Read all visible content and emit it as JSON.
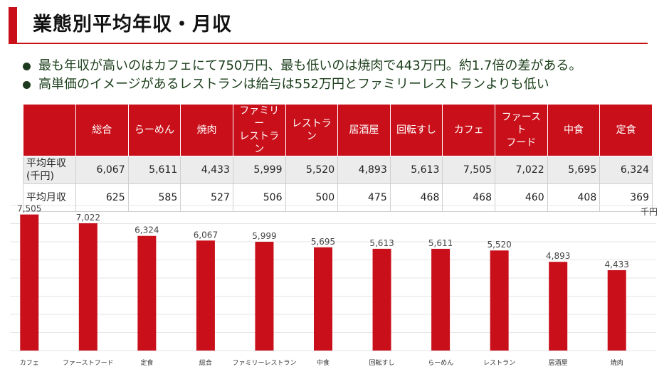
{
  "title": "業態別平均年収・月収",
  "bullets": [
    "最も年収が高いのはカフェにて750万円、最も低いのは焼肉で443万円。約1.7倍の差がある。",
    "高単価のイメージがあるレストランは給与は552万円とファミリーレストランよりも低い"
  ],
  "table": {
    "columns": [
      "総合",
      "らーめん",
      "焼肉",
      "ファミリー\nレストラン",
      "レストラン",
      "居酒屋",
      "回転すし",
      "カフェ",
      "ファースト\nフード",
      "中食",
      "定食"
    ],
    "rows": [
      {
        "label": "平均年収\n(千円)",
        "values": [
          "6,067",
          "5,611",
          "4,433",
          "5,999",
          "5,520",
          "4,893",
          "5,613",
          "7,505",
          "7,022",
          "5,695",
          "6,324"
        ]
      },
      {
        "label": "平均月収",
        "values": [
          "625",
          "585",
          "527",
          "506",
          "500",
          "475",
          "468",
          "468",
          "460",
          "408",
          "369"
        ]
      }
    ]
  },
  "colors": {
    "accent": "#c9101a",
    "bar": "#c9101a",
    "grid": "#e4e4e4"
  },
  "chart_data": {
    "type": "bar",
    "unit": "千円",
    "categories": [
      "カフェ",
      "ファーストフード",
      "定食",
      "総合",
      "ファミリーレストラン",
      "中食",
      "回転すし",
      "らーめん",
      "レストラン",
      "居酒屋",
      "焼肉"
    ],
    "values": [
      7505,
      7022,
      6324,
      6067,
      5999,
      5695,
      5613,
      5611,
      5520,
      4893,
      4433
    ],
    "value_labels": [
      "7,505",
      "7,022",
      "6,324",
      "6,067",
      "5,999",
      "5,695",
      "5,613",
      "5,611",
      "5,520",
      "4,893",
      "4,433"
    ],
    "ylim": [
      0,
      8000
    ],
    "grid": true
  }
}
